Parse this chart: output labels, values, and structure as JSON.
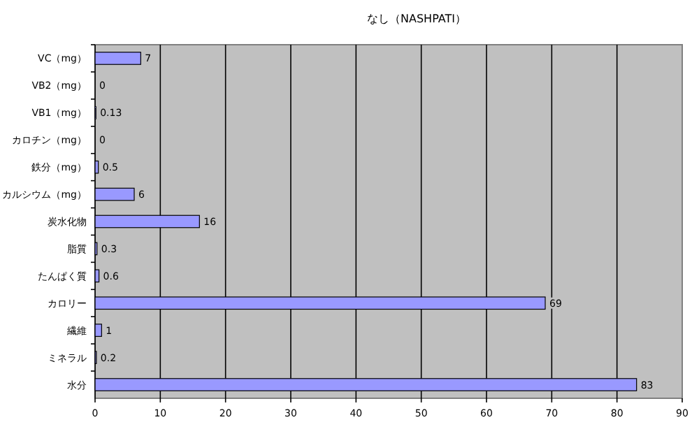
{
  "chart_data": {
    "type": "bar",
    "orientation": "horizontal",
    "title": "なし（NASHPATI）",
    "categories": [
      "VC（mg）",
      "VB2（mg）",
      "VB1（mg）",
      "カロチン（mg）",
      "鉄分（mg）",
      "カルシウム（mg）",
      "炭水化物",
      "脂質",
      "たんぱく質",
      "カロリー",
      "繊維",
      "ミネラル",
      "水分"
    ],
    "values": [
      7,
      0,
      0.13,
      0,
      0.5,
      6,
      16,
      0.3,
      0.6,
      69,
      1,
      0.2,
      83
    ],
    "color": "#9999ff",
    "xlim": [
      0,
      90
    ],
    "xticks": [
      0,
      10,
      20,
      30,
      40,
      50,
      60,
      70,
      80,
      90
    ],
    "grid": "x",
    "data_labels": true
  }
}
